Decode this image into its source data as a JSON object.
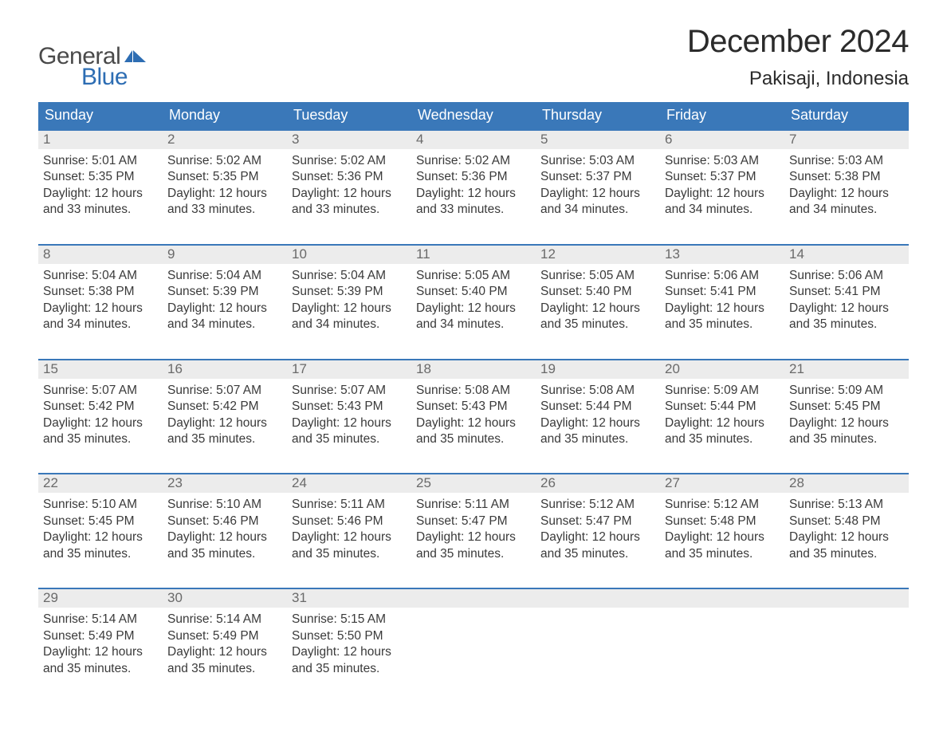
{
  "brand": {
    "word1": "General",
    "word2": "Blue",
    "flag_color": "#2d6db3",
    "word1_color": "#4a4a4a",
    "word2_color": "#2d6db3"
  },
  "title": "December 2024",
  "location": "Pakisaji, Indonesia",
  "colors": {
    "header_bg": "#3a78b9",
    "header_text": "#ffffff",
    "daynum_bg": "#ececec",
    "daynum_text": "#6a6a6a",
    "body_text": "#3a3a3a",
    "row_border": "#3a78b9",
    "page_bg": "#ffffff"
  },
  "weekdays": [
    "Sunday",
    "Monday",
    "Tuesday",
    "Wednesday",
    "Thursday",
    "Friday",
    "Saturday"
  ],
  "weeks": [
    [
      {
        "n": "1",
        "sunrise": "5:01 AM",
        "sunset": "5:35 PM",
        "dl": "12 hours and 33 minutes."
      },
      {
        "n": "2",
        "sunrise": "5:02 AM",
        "sunset": "5:35 PM",
        "dl": "12 hours and 33 minutes."
      },
      {
        "n": "3",
        "sunrise": "5:02 AM",
        "sunset": "5:36 PM",
        "dl": "12 hours and 33 minutes."
      },
      {
        "n": "4",
        "sunrise": "5:02 AM",
        "sunset": "5:36 PM",
        "dl": "12 hours and 33 minutes."
      },
      {
        "n": "5",
        "sunrise": "5:03 AM",
        "sunset": "5:37 PM",
        "dl": "12 hours and 34 minutes."
      },
      {
        "n": "6",
        "sunrise": "5:03 AM",
        "sunset": "5:37 PM",
        "dl": "12 hours and 34 minutes."
      },
      {
        "n": "7",
        "sunrise": "5:03 AM",
        "sunset": "5:38 PM",
        "dl": "12 hours and 34 minutes."
      }
    ],
    [
      {
        "n": "8",
        "sunrise": "5:04 AM",
        "sunset": "5:38 PM",
        "dl": "12 hours and 34 minutes."
      },
      {
        "n": "9",
        "sunrise": "5:04 AM",
        "sunset": "5:39 PM",
        "dl": "12 hours and 34 minutes."
      },
      {
        "n": "10",
        "sunrise": "5:04 AM",
        "sunset": "5:39 PM",
        "dl": "12 hours and 34 minutes."
      },
      {
        "n": "11",
        "sunrise": "5:05 AM",
        "sunset": "5:40 PM",
        "dl": "12 hours and 34 minutes."
      },
      {
        "n": "12",
        "sunrise": "5:05 AM",
        "sunset": "5:40 PM",
        "dl": "12 hours and 35 minutes."
      },
      {
        "n": "13",
        "sunrise": "5:06 AM",
        "sunset": "5:41 PM",
        "dl": "12 hours and 35 minutes."
      },
      {
        "n": "14",
        "sunrise": "5:06 AM",
        "sunset": "5:41 PM",
        "dl": "12 hours and 35 minutes."
      }
    ],
    [
      {
        "n": "15",
        "sunrise": "5:07 AM",
        "sunset": "5:42 PM",
        "dl": "12 hours and 35 minutes."
      },
      {
        "n": "16",
        "sunrise": "5:07 AM",
        "sunset": "5:42 PM",
        "dl": "12 hours and 35 minutes."
      },
      {
        "n": "17",
        "sunrise": "5:07 AM",
        "sunset": "5:43 PM",
        "dl": "12 hours and 35 minutes."
      },
      {
        "n": "18",
        "sunrise": "5:08 AM",
        "sunset": "5:43 PM",
        "dl": "12 hours and 35 minutes."
      },
      {
        "n": "19",
        "sunrise": "5:08 AM",
        "sunset": "5:44 PM",
        "dl": "12 hours and 35 minutes."
      },
      {
        "n": "20",
        "sunrise": "5:09 AM",
        "sunset": "5:44 PM",
        "dl": "12 hours and 35 minutes."
      },
      {
        "n": "21",
        "sunrise": "5:09 AM",
        "sunset": "5:45 PM",
        "dl": "12 hours and 35 minutes."
      }
    ],
    [
      {
        "n": "22",
        "sunrise": "5:10 AM",
        "sunset": "5:45 PM",
        "dl": "12 hours and 35 minutes."
      },
      {
        "n": "23",
        "sunrise": "5:10 AM",
        "sunset": "5:46 PM",
        "dl": "12 hours and 35 minutes."
      },
      {
        "n": "24",
        "sunrise": "5:11 AM",
        "sunset": "5:46 PM",
        "dl": "12 hours and 35 minutes."
      },
      {
        "n": "25",
        "sunrise": "5:11 AM",
        "sunset": "5:47 PM",
        "dl": "12 hours and 35 minutes."
      },
      {
        "n": "26",
        "sunrise": "5:12 AM",
        "sunset": "5:47 PM",
        "dl": "12 hours and 35 minutes."
      },
      {
        "n": "27",
        "sunrise": "5:12 AM",
        "sunset": "5:48 PM",
        "dl": "12 hours and 35 minutes."
      },
      {
        "n": "28",
        "sunrise": "5:13 AM",
        "sunset": "5:48 PM",
        "dl": "12 hours and 35 minutes."
      }
    ],
    [
      {
        "n": "29",
        "sunrise": "5:14 AM",
        "sunset": "5:49 PM",
        "dl": "12 hours and 35 minutes."
      },
      {
        "n": "30",
        "sunrise": "5:14 AM",
        "sunset": "5:49 PM",
        "dl": "12 hours and 35 minutes."
      },
      {
        "n": "31",
        "sunrise": "5:15 AM",
        "sunset": "5:50 PM",
        "dl": "12 hours and 35 minutes."
      },
      null,
      null,
      null,
      null
    ]
  ],
  "labels": {
    "sunrise": "Sunrise: ",
    "sunset": "Sunset: ",
    "daylight": "Daylight: "
  }
}
